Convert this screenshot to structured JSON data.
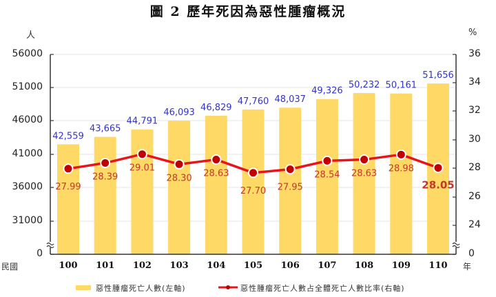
{
  "title": "圖 2  歷年死因為惡性腫瘤概況",
  "left_unit": "人",
  "right_unit": "%",
  "x_prefix": "民國",
  "x_suffix": "年",
  "left_ticks": [
    "56000",
    "51000",
    "46000",
    "41000",
    "36000",
    "31000",
    "0"
  ],
  "right_ticks": [
    "36",
    "34",
    "32",
    "30",
    "28",
    "26",
    "24",
    "0"
  ],
  "legend": {
    "bar": "惡性腫瘤死亡人數(左軸)",
    "line": "惡性腫瘤死亡人數占全體死亡人數比率(右軸)"
  },
  "colors": {
    "bar": "#FFD966",
    "line": "#E8141C",
    "marker": "#C00000",
    "bar_label": "#3333CC",
    "line_label": "#C0392B"
  },
  "chart_data": {
    "type": "bar+line",
    "title": "圖 2 歷年死因為惡性腫瘤概況",
    "categories": [
      "100",
      "101",
      "102",
      "103",
      "104",
      "105",
      "106",
      "107",
      "108",
      "109",
      "110"
    ],
    "xlabel": "民國 (年)",
    "ylabel_left": "人",
    "ylabel_right": "%",
    "ylim_left": [
      0,
      56000
    ],
    "ylim_left_visible": [
      26000,
      56000
    ],
    "ylim_right": [
      0,
      36
    ],
    "ylim_right_visible": [
      22,
      36
    ],
    "axis_break": true,
    "grid": true,
    "legend_position": "bottom",
    "series": [
      {
        "name": "惡性腫瘤死亡人數(左軸)",
        "type": "bar",
        "axis": "left",
        "values": [
          42559,
          43665,
          44791,
          46093,
          46829,
          47760,
          48037,
          49326,
          50232,
          50161,
          51656
        ],
        "labels": [
          "42,559",
          "43,665",
          "44,791",
          "46,093",
          "46,829",
          "47,760",
          "48,037",
          "49,326",
          "50,232",
          "50,161",
          "51,656"
        ]
      },
      {
        "name": "惡性腫瘤死亡人數占全體死亡人數比率(右軸)",
        "type": "line",
        "axis": "right",
        "values": [
          27.99,
          28.39,
          29.01,
          28.3,
          28.63,
          27.7,
          27.95,
          28.54,
          28.63,
          28.98,
          28.05
        ],
        "labels": [
          "27.99",
          "28.39",
          "29.01",
          "28.30",
          "28.63",
          "27.70",
          "27.95",
          "28.54",
          "28.63",
          "28.98",
          "28.05"
        ]
      }
    ]
  }
}
